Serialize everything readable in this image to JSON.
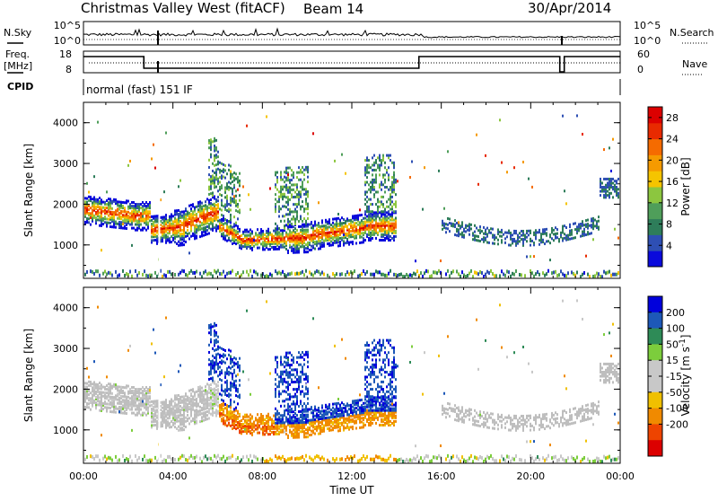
{
  "header": {
    "site": "Christmas Valley West (fitACF)",
    "beam": "Beam 14",
    "date": "30/Apr/2014"
  },
  "panels": {
    "nsky_label": "N.Sky",
    "nsearch_label": "N.Search",
    "nsky_ticks": [
      "10^5",
      "10^0"
    ],
    "nsearch_ticks": [
      "10^5",
      "10^0"
    ],
    "freq_label_1": "Freq.",
    "freq_label_2": "[MHz]",
    "freq_ticks": [
      "18",
      "8"
    ],
    "nave_label": "Nave",
    "nave_ticks": [
      "60",
      "0"
    ],
    "cpid_label": "CPID",
    "cpid_text": "normal (fast) 151 IF"
  },
  "colors": {
    "power": [
      "#0a0adc",
      "#2e4fb4",
      "#2e7d5a",
      "#4f9e5a",
      "#8cc63f",
      "#f5c400",
      "#f59a00",
      "#f56b00",
      "#e82a00",
      "#dc0000"
    ],
    "velocity": [
      "#0000dc",
      "#1d58b8",
      "#2e8b57",
      "#7ccd3c",
      "#c8c8c8",
      "#c8c8c8",
      "#f0c000",
      "#f08a00",
      "#ee4400",
      "#dc0000"
    ],
    "ground": "#bebebe"
  },
  "chart_data": [
    {
      "type": "heatmap",
      "name": "Power",
      "xlabel": "",
      "ylabel": "Slant Range [km]",
      "x_range_hours": [
        0,
        24
      ],
      "ylim": [
        180,
        4500
      ],
      "y_ticks": [
        "1000",
        "2000",
        "3000",
        "4000"
      ],
      "colorbar_label": "Power [dB]",
      "colorbar_ticks": [
        "4",
        "8",
        "12",
        "16",
        "20",
        "24",
        "28"
      ],
      "colorbar_range": [
        0,
        30
      ]
    },
    {
      "type": "heatmap",
      "name": "Velocity",
      "xlabel": "Time UT",
      "ylabel": "Slant Range [km]",
      "x_range_hours": [
        0,
        24
      ],
      "ylim": [
        180,
        4500
      ],
      "x_ticks": [
        "00:00",
        "04:00",
        "08:00",
        "12:00",
        "16:00",
        "20:00",
        "00:00"
      ],
      "y_ticks": [
        "1000",
        "2000",
        "3000",
        "4000"
      ],
      "colorbar_label": "Velocity [m s^-1]",
      "colorbar_ticks": [
        "200",
        "100",
        "50",
        "15",
        "-15",
        "-50",
        "-100",
        "-200"
      ],
      "colorbar_range": [
        -250,
        250
      ]
    }
  ]
}
